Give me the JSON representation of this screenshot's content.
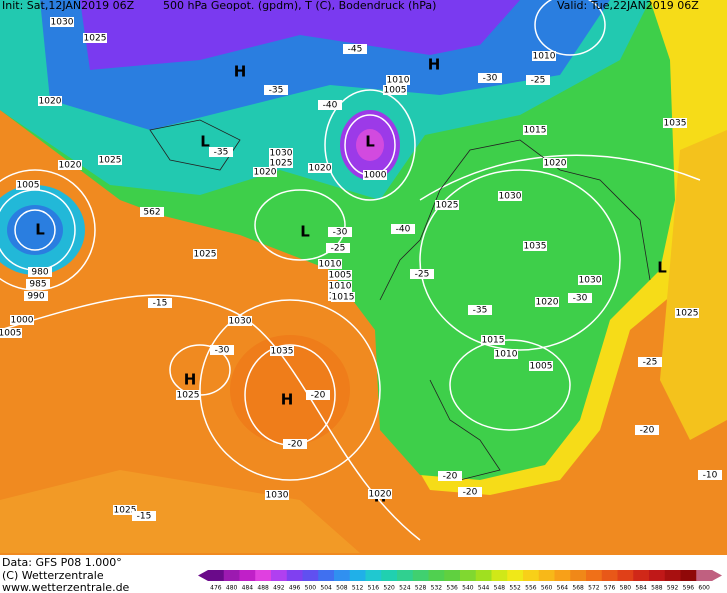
{
  "header": {
    "init": "Init: Sat,12JAN2019 06Z",
    "title": "500 hPa Geopot. (gpdm), T (C), Bodendruck (hPa)",
    "valid": "Valid: Tue,22JAN2019 06Z"
  },
  "map": {
    "labels": [
      "H",
      "H",
      "L",
      "L",
      "L",
      "L",
      "L",
      "H",
      "H",
      "H",
      "1030",
      "1025",
      "1020",
      "1020",
      "1025",
      "1005",
      "980",
      "985",
      "990",
      "1000",
      "1005",
      "1025",
      "1030",
      "1035",
      "1025",
      "1030",
      "1025",
      "1020",
      "1025",
      "1030",
      "1020",
      "1015",
      "1010",
      "1005",
      "1010",
      "1015",
      "1020",
      "1030",
      "1035",
      "1025",
      "1030",
      "1020",
      "1015",
      "1010",
      "1005",
      "1035",
      "1025",
      "1010",
      "1015",
      "1020",
      "1010",
      "1005",
      "1000",
      "-45",
      "-40",
      "-35",
      "-30",
      "-25",
      "-20",
      "-15",
      "-30",
      "-20",
      "-15",
      "-40",
      "-35",
      "-30",
      "-25",
      "-20",
      "-10",
      "-25",
      "-20",
      "-30",
      "-35",
      "-20",
      "-25",
      "562"
    ]
  },
  "footer": {
    "data": "Data: GFS P08 1.000°",
    "copyright": "(C) Wetterzentrale",
    "url": "www.wetterzentrale.de"
  },
  "colorbar": {
    "labels": [
      "476",
      "480",
      "484",
      "488",
      "492",
      "496",
      "500",
      "504",
      "508",
      "512",
      "516",
      "520",
      "524",
      "528",
      "532",
      "536",
      "540",
      "544",
      "548",
      "552",
      "556",
      "560",
      "564",
      "568",
      "572",
      "576",
      "580",
      "584",
      "588",
      "592",
      "596",
      "600"
    ]
  }
}
